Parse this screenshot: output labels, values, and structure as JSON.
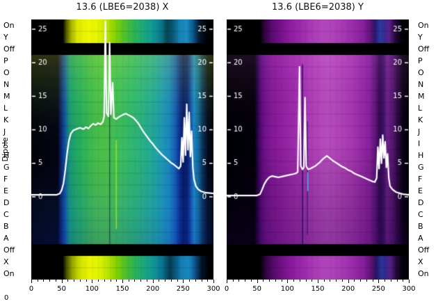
{
  "chart_data": {
    "type": "heatmap+line",
    "y_axis_label": "Dipole",
    "corner_zero": "0",
    "line_color": "#ffffff",
    "background": "#000000",
    "dipole_labels": [
      "On",
      "Y",
      "Off",
      "P",
      "O",
      "N",
      "M",
      "L",
      "K",
      "J",
      "I",
      "H",
      "G",
      "F",
      "E",
      "D",
      "C",
      "B",
      "A",
      "Off",
      "X",
      "On"
    ],
    "x_ticks": [
      0,
      50,
      100,
      150,
      200,
      250,
      300
    ],
    "x_minor_step": 10,
    "x_range": [
      0,
      300
    ],
    "y_ticks": [
      25,
      20,
      15,
      10,
      5,
      0
    ],
    "value_axis": {
      "min": 0,
      "max": 26.5
    },
    "panels": [
      {
        "id": "X",
        "title": "13.6 (LBE6=2038) X",
        "strip_top_stops": [
          [
            0,
            "#000000"
          ],
          [
            52,
            "#000000"
          ],
          [
            58,
            "#5a6000"
          ],
          [
            66,
            "#a8b400"
          ],
          [
            76,
            "#dce800"
          ],
          [
            92,
            "#eef800"
          ],
          [
            108,
            "#e6f400"
          ],
          [
            122,
            "#c4e800"
          ],
          [
            136,
            "#8ed400"
          ],
          [
            152,
            "#55c226"
          ],
          [
            168,
            "#30b452"
          ],
          [
            184,
            "#1ca878"
          ],
          [
            198,
            "#129a92"
          ],
          [
            212,
            "#0c7e8e"
          ],
          [
            224,
            "#064656"
          ],
          [
            234,
            "#0a5a78"
          ],
          [
            244,
            "#1782b4"
          ],
          [
            256,
            "#1a8cc0"
          ],
          [
            266,
            "#0e5a92"
          ],
          [
            276,
            "#041a30"
          ],
          [
            288,
            "#000308"
          ],
          [
            300,
            "#000000"
          ]
        ],
        "main_stops": [
          [
            0,
            "#020208"
          ],
          [
            44,
            "#040414"
          ],
          [
            50,
            "#0c2c7e"
          ],
          [
            56,
            "#1256a4"
          ],
          [
            62,
            "#17957c"
          ],
          [
            72,
            "#1fa768"
          ],
          [
            86,
            "#2db35a"
          ],
          [
            102,
            "#44bd4c"
          ],
          [
            122,
            "#4cc24a"
          ],
          [
            142,
            "#3ec05a"
          ],
          [
            162,
            "#33ba6c"
          ],
          [
            182,
            "#29b382"
          ],
          [
            200,
            "#22a99c"
          ],
          [
            214,
            "#1e9cb4"
          ],
          [
            228,
            "#1a86c2"
          ],
          [
            238,
            "#1458b4"
          ],
          [
            245,
            "#0c2a8a"
          ],
          [
            250,
            "#081a66"
          ],
          [
            257,
            "#0a1e70"
          ],
          [
            263,
            "#1452b2"
          ],
          [
            268,
            "#1c88c6"
          ],
          [
            275,
            "#14689c"
          ],
          [
            283,
            "#0a2c52"
          ],
          [
            291,
            "#030a1a"
          ],
          [
            300,
            "#010106"
          ]
        ],
        "strip_bottom_stops": [
          [
            0,
            "#000000"
          ],
          [
            52,
            "#000000"
          ],
          [
            58,
            "#4a5200"
          ],
          [
            68,
            "#9aa800"
          ],
          [
            80,
            "#d0e000"
          ],
          [
            96,
            "#e8f600"
          ],
          [
            112,
            "#def200"
          ],
          [
            126,
            "#b8e400"
          ],
          [
            140,
            "#84d000"
          ],
          [
            156,
            "#4cbe2e"
          ],
          [
            172,
            "#2ab05a"
          ],
          [
            188,
            "#18a482"
          ],
          [
            202,
            "#10949a"
          ],
          [
            216,
            "#0a7290"
          ],
          [
            228,
            "#053a4e"
          ],
          [
            238,
            "#0a5a80"
          ],
          [
            248,
            "#1580b8"
          ],
          [
            260,
            "#1888c0"
          ],
          [
            270,
            "#0c5088"
          ],
          [
            280,
            "#03142a"
          ],
          [
            292,
            "#000206"
          ],
          [
            300,
            "#000000"
          ]
        ],
        "tint": [
          [
            0,
            "rgba(230,240,40,0.20)"
          ],
          [
            0.22,
            "rgba(120,210,60,0.10)"
          ],
          [
            0.5,
            "rgba(0,0,0,0)"
          ],
          [
            0.78,
            "rgba(20,80,200,0.10)"
          ],
          [
            1,
            "rgba(10,40,160,0.22)"
          ]
        ],
        "vmarks": [
          {
            "x": 129,
            "f0": 0.0,
            "f1": 1.0,
            "color": "rgba(6,10,50,0.5)",
            "w": 1.4
          },
          {
            "x": 140,
            "f0": 0.45,
            "f1": 0.92,
            "color": "rgba(170,225,0,0.9)",
            "w": 1.6
          }
        ],
        "profile": [
          [
            0,
            0.3
          ],
          [
            20,
            0.3
          ],
          [
            42,
            0.3
          ],
          [
            47,
            0.5
          ],
          [
            50,
            1
          ],
          [
            53,
            2
          ],
          [
            56,
            4
          ],
          [
            59,
            6.5
          ],
          [
            62,
            8.4
          ],
          [
            65,
            9.4
          ],
          [
            69,
            9.9
          ],
          [
            74,
            10.1
          ],
          [
            80,
            10.3
          ],
          [
            86,
            10.1
          ],
          [
            90,
            10.4
          ],
          [
            94,
            10.2
          ],
          [
            98,
            10.6
          ],
          [
            102,
            10.9
          ],
          [
            106,
            10.7
          ],
          [
            110,
            11
          ],
          [
            114,
            10.8
          ],
          [
            118,
            11.2
          ],
          [
            120,
            12
          ],
          [
            122,
            26.2
          ],
          [
            124,
            12.5
          ],
          [
            127,
            12
          ],
          [
            129,
            23
          ],
          [
            131,
            12.3
          ],
          [
            134,
            17
          ],
          [
            136,
            11.8
          ],
          [
            140,
            11.6
          ],
          [
            144,
            11.9
          ],
          [
            148,
            12.1
          ],
          [
            152,
            12.3
          ],
          [
            156,
            12.4
          ],
          [
            160,
            12.2
          ],
          [
            164,
            12
          ],
          [
            168,
            11.8
          ],
          [
            172,
            11.4
          ],
          [
            176,
            11
          ],
          [
            180,
            10.4
          ],
          [
            184,
            9.8
          ],
          [
            188,
            9.3
          ],
          [
            192,
            8.8
          ],
          [
            196,
            8.3
          ],
          [
            200,
            7.9
          ],
          [
            205,
            7.3
          ],
          [
            210,
            6.8
          ],
          [
            215,
            6.3
          ],
          [
            220,
            5.9
          ],
          [
            225,
            5.5
          ],
          [
            230,
            5.1
          ],
          [
            235,
            4.8
          ],
          [
            239,
            4.5
          ],
          [
            243,
            4.2
          ],
          [
            246,
            4.6
          ],
          [
            248,
            8.8
          ],
          [
            250,
            5.2
          ],
          [
            252,
            11.8
          ],
          [
            254,
            6.2
          ],
          [
            256,
            13.8
          ],
          [
            258,
            7
          ],
          [
            260,
            12.6
          ],
          [
            262,
            6
          ],
          [
            264,
            9.8
          ],
          [
            266,
            4.4
          ],
          [
            268,
            2.6
          ],
          [
            271,
            1.6
          ],
          [
            275,
            1.1
          ],
          [
            280,
            0.8
          ],
          [
            288,
            0.6
          ],
          [
            300,
            0.5
          ]
        ]
      },
      {
        "id": "Y",
        "title": "13.6 (LBE6=2038) Y",
        "strip_top_stops": [
          [
            0,
            "#000000"
          ],
          [
            55,
            "#000000"
          ],
          [
            62,
            "#2e043c"
          ],
          [
            74,
            "#560a6e"
          ],
          [
            88,
            "#741088"
          ],
          [
            104,
            "#8c1c9e"
          ],
          [
            122,
            "#9c2aac"
          ],
          [
            140,
            "#aa3ab6"
          ],
          [
            158,
            "#b246bc"
          ],
          [
            176,
            "#ae42ba"
          ],
          [
            194,
            "#a436b2"
          ],
          [
            210,
            "#962aa8"
          ],
          [
            224,
            "#86209c"
          ],
          [
            236,
            "#641478"
          ],
          [
            244,
            "#2c1468"
          ],
          [
            252,
            "#283aa0"
          ],
          [
            260,
            "#3a2a90"
          ],
          [
            268,
            "#5c2088"
          ],
          [
            276,
            "#2c0a46"
          ],
          [
            286,
            "#060210"
          ],
          [
            300,
            "#000000"
          ]
        ],
        "main_stops": [
          [
            0,
            "#010005"
          ],
          [
            46,
            "#030009"
          ],
          [
            53,
            "#3c0562"
          ],
          [
            60,
            "#681084"
          ],
          [
            70,
            "#7e1694"
          ],
          [
            84,
            "#8c1c9e"
          ],
          [
            98,
            "#9624a6"
          ],
          [
            114,
            "#a02cae"
          ],
          [
            130,
            "#aa36b4"
          ],
          [
            146,
            "#b242ba"
          ],
          [
            162,
            "#b84cc0"
          ],
          [
            178,
            "#b448bc"
          ],
          [
            194,
            "#ae3eb6"
          ],
          [
            210,
            "#a434b0"
          ],
          [
            224,
            "#9628a8"
          ],
          [
            236,
            "#86209c"
          ],
          [
            245,
            "#5c1478"
          ],
          [
            252,
            "#300a52"
          ],
          [
            258,
            "#3c1062"
          ],
          [
            264,
            "#6a2088"
          ],
          [
            272,
            "#5a1876"
          ],
          [
            281,
            "#300a46"
          ],
          [
            290,
            "#0a0214"
          ],
          [
            300,
            "#010005"
          ]
        ],
        "strip_bottom_stops": [
          [
            0,
            "#000000"
          ],
          [
            55,
            "#000000"
          ],
          [
            63,
            "#2a0438"
          ],
          [
            76,
            "#520a68"
          ],
          [
            90,
            "#701084"
          ],
          [
            106,
            "#881a9a"
          ],
          [
            124,
            "#9828aa"
          ],
          [
            142,
            "#a838b4"
          ],
          [
            160,
            "#b044ba"
          ],
          [
            178,
            "#ac40b8"
          ],
          [
            196,
            "#a234b0"
          ],
          [
            212,
            "#9428a6"
          ],
          [
            226,
            "#841e9a"
          ],
          [
            238,
            "#5e1274"
          ],
          [
            246,
            "#281260"
          ],
          [
            254,
            "#243698"
          ],
          [
            262,
            "#36288c"
          ],
          [
            270,
            "#581e84"
          ],
          [
            278,
            "#280a42"
          ],
          [
            288,
            "#05020e"
          ],
          [
            300,
            "#000000"
          ]
        ],
        "tint": [
          [
            0,
            "rgba(255,140,255,0.10)"
          ],
          [
            0.45,
            "rgba(0,0,0,0)"
          ],
          [
            1,
            "rgba(30,0,70,0.28)"
          ]
        ],
        "vmarks": [
          {
            "x": 125,
            "f0": 0.05,
            "f1": 1.0,
            "color": "rgba(10,16,90,0.8)",
            "w": 1.6
          },
          {
            "x": 133,
            "f0": 0.35,
            "f1": 0.95,
            "color": "rgba(10,16,90,0.6)",
            "w": 1.4
          },
          {
            "x": 133.5,
            "f0": 0.62,
            "f1": 0.72,
            "color": "rgba(80,190,255,0.9)",
            "w": 1.6
          }
        ],
        "profile": [
          [
            0,
            0.2
          ],
          [
            30,
            0.2
          ],
          [
            50,
            0.2
          ],
          [
            55,
            0.4
          ],
          [
            58,
            1
          ],
          [
            62,
            1.9
          ],
          [
            66,
            2.5
          ],
          [
            70,
            2.9
          ],
          [
            75,
            3.1
          ],
          [
            80,
            3
          ],
          [
            85,
            2.9
          ],
          [
            90,
            3
          ],
          [
            95,
            3.1
          ],
          [
            100,
            3.2
          ],
          [
            105,
            3.3
          ],
          [
            110,
            3.4
          ],
          [
            114,
            3.5
          ],
          [
            117,
            3.7
          ],
          [
            120,
            19.4
          ],
          [
            122,
            4.6
          ],
          [
            125,
            4.1
          ],
          [
            127,
            4.4
          ],
          [
            129,
            14.8
          ],
          [
            131,
            4.6
          ],
          [
            134,
            4.1
          ],
          [
            138,
            4.2
          ],
          [
            142,
            4.4
          ],
          [
            146,
            4.6
          ],
          [
            150,
            4.9
          ],
          [
            154,
            5.2
          ],
          [
            158,
            5.6
          ],
          [
            162,
            5.9
          ],
          [
            165,
            6.1
          ],
          [
            168,
            5.9
          ],
          [
            172,
            5.6
          ],
          [
            176,
            5.3
          ],
          [
            180,
            5.1
          ],
          [
            185,
            4.8
          ],
          [
            190,
            4.5
          ],
          [
            195,
            4.3
          ],
          [
            200,
            4
          ],
          [
            205,
            3.8
          ],
          [
            210,
            3.5
          ],
          [
            215,
            3.3
          ],
          [
            220,
            3.1
          ],
          [
            225,
            2.9
          ],
          [
            230,
            2.7
          ],
          [
            235,
            2.5
          ],
          [
            240,
            2.3
          ],
          [
            244,
            2.2
          ],
          [
            247,
            2.8
          ],
          [
            249,
            7.4
          ],
          [
            251,
            4.2
          ],
          [
            253,
            8.6
          ],
          [
            255,
            5
          ],
          [
            257,
            9.2
          ],
          [
            259,
            5.8
          ],
          [
            261,
            8.2
          ],
          [
            263,
            4.4
          ],
          [
            265,
            6.4
          ],
          [
            267,
            2.8
          ],
          [
            269,
            1.6
          ],
          [
            273,
            1.1
          ],
          [
            279,
            0.7
          ],
          [
            290,
            0.4
          ],
          [
            300,
            0.3
          ]
        ]
      }
    ]
  }
}
